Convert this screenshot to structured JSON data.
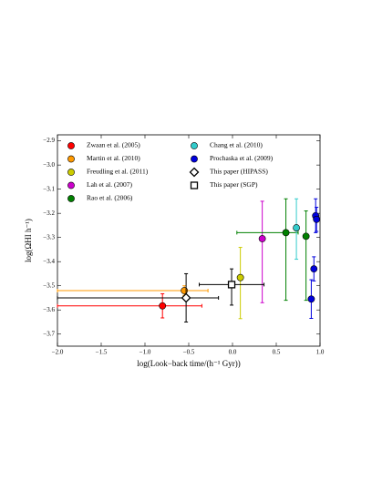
{
  "chart_data": {
    "type": "scatter",
    "xlabel": "log(Look−back time/(h⁻¹ Gyr))",
    "ylabel": "log(ΩHI h⁻¹)",
    "xlim": [
      -2.0,
      1.0
    ],
    "ylim": [
      -3.75,
      -2.875
    ],
    "xticks": [
      {
        "value": -2.0,
        "label": "−2.0"
      },
      {
        "value": -1.5,
        "label": "−1.5"
      },
      {
        "value": -1.0,
        "label": "−1.0"
      },
      {
        "value": -0.5,
        "label": "−0.5"
      },
      {
        "value": 0.0,
        "label": "0.0"
      },
      0.5,
      {
        "value": 1.0,
        "label": "1.0"
      }
    ],
    "yticks": [
      {
        "value": -2.9,
        "label": "−2.9"
      },
      {
        "value": -3.0,
        "label": "−3.0"
      },
      {
        "value": -3.1,
        "label": "−3.1"
      },
      {
        "value": -3.2,
        "label": "−3.2"
      },
      {
        "value": -3.3,
        "label": "−3.3"
      },
      {
        "value": -3.4,
        "label": "−3.4"
      },
      {
        "value": -3.5,
        "label": "−3.5"
      },
      {
        "value": -3.6,
        "label": "−3.6"
      },
      {
        "value": -3.7,
        "label": "−3.7"
      }
    ],
    "legend": "upper left",
    "series": [
      {
        "name": "Zwaan et al. (2005)",
        "color": "#ff0000",
        "marker": "circle",
        "x": [
          -0.8
        ],
        "y": [
          -3.583
        ],
        "xerr": [
          [
            1.2,
            0.45
          ]
        ],
        "yerr": [
          [
            0.05,
            0.05
          ]
        ]
      },
      {
        "name": "Martin et al. (2010)",
        "color": "#ff9900",
        "marker": "circle",
        "x": [
          -0.55
        ],
        "y": [
          -3.52
        ],
        "xerr": [
          [
            1.45,
            0.27
          ]
        ],
        "yerr": [
          [
            0.02,
            0.02
          ]
        ]
      },
      {
        "name": "Freudling et al. (2011)",
        "color": "#cccc00",
        "marker": "circle",
        "x": [
          0.09
        ],
        "y": [
          -3.466
        ],
        "xerr": [
          null
        ],
        "yerr": [
          [
            0.17,
            0.125
          ]
        ]
      },
      {
        "name": "Lah et al. (2007)",
        "color": "#cc00cc",
        "marker": "circle",
        "x": [
          0.34
        ],
        "y": [
          -3.305
        ],
        "xerr": [
          null
        ],
        "yerr": [
          [
            0.265,
            0.155
          ]
        ]
      },
      {
        "name": "Rao et al. (2006)",
        "color": "#008000",
        "marker": "circle",
        "x": [
          0.61,
          0.84
        ],
        "y": [
          -3.28,
          -3.295
        ],
        "xerr": [
          [
            0.56,
            0.14
          ],
          null
        ],
        "yerr": [
          [
            0.28,
            0.14
          ],
          [
            0.265,
            0.105
          ]
        ]
      },
      {
        "name": "Chang et al. (2010)",
        "color": "#33cccc",
        "marker": "circle",
        "x": [
          0.73
        ],
        "y": [
          -3.26
        ],
        "xerr": [
          null
        ],
        "yerr": [
          [
            0.13,
            0.12
          ]
        ]
      },
      {
        "name": "Prochaska et al. (2009)",
        "color": "#0000dd",
        "marker": "circle",
        "x": [
          0.93,
          0.9,
          0.95,
          0.96
        ],
        "y": [
          -3.43,
          -3.555,
          -3.21,
          -3.225
        ],
        "xerr": [
          null,
          null,
          null,
          null
        ],
        "yerr": [
          [
            0.05,
            0.05
          ],
          [
            0.08,
            0.08
          ],
          [
            0.07,
            0.07
          ],
          [
            0.05,
            0.05
          ]
        ]
      },
      {
        "name": "This paper (HIPASS)",
        "color": "#000000",
        "marker": "diamond",
        "x": [
          -0.53
        ],
        "y": [
          -3.55
        ],
        "xerr": [
          [
            1.47,
            0.37
          ]
        ],
        "yerr": [
          [
            0.1,
            0.1
          ]
        ]
      },
      {
        "name": "This paper (SGP)",
        "color": "#000000",
        "marker": "square",
        "x": [
          -0.01
        ],
        "y": [
          -3.495
        ],
        "xerr": [
          [
            0.37,
            0.37
          ]
        ],
        "yerr": [
          [
            0.085,
            0.065
          ]
        ]
      }
    ]
  }
}
